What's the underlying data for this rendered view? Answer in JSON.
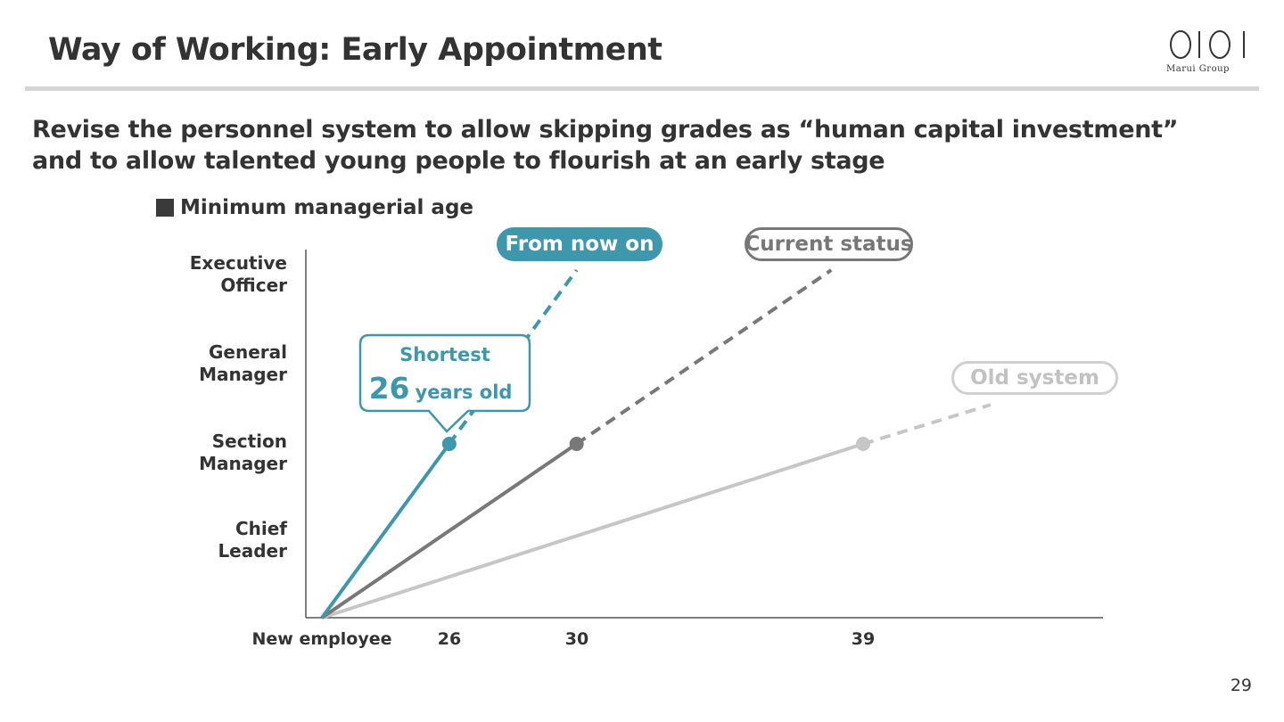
{
  "header": {
    "title": "Way of Working: Early Appointment",
    "logo_text": "Marui Group",
    "subtitle": "Revise the personnel system to allow skipping grades as “human capital investment” and to allow talented young people to flourish at an early stage"
  },
  "legend": {
    "label": "Minimum managerial age"
  },
  "chart_data": {
    "type": "line",
    "y_categories": [
      "Chief Leader",
      "Section Manager",
      "General Manager",
      "Executive Officer"
    ],
    "y_origin_label": "New employee",
    "x_tick_labels": [
      "26",
      "30",
      "39"
    ],
    "series": [
      {
        "name": "From now on",
        "color": "#3d97ad",
        "x": [
          22,
          26
        ],
        "y": [
          0,
          2
        ],
        "marker": {
          "x": 26,
          "y": 2
        },
        "projection": {
          "x": [
            26,
            30
          ],
          "y": [
            2,
            4
          ]
        }
      },
      {
        "name": "Current status",
        "color": "#787878",
        "x": [
          22,
          30
        ],
        "y": [
          0,
          2
        ],
        "marker": {
          "x": 30,
          "y": 2
        },
        "projection": {
          "x": [
            30,
            38
          ],
          "y": [
            2,
            4
          ]
        }
      },
      {
        "name": "Old system",
        "color": "#c6c6c6",
        "x": [
          22,
          39
        ],
        "y": [
          0,
          2
        ],
        "marker": {
          "x": 39,
          "y": 2
        },
        "projection": {
          "x": [
            39,
            43
          ],
          "y": [
            2,
            2.45
          ]
        }
      }
    ],
    "annotation": {
      "line1": "Shortest",
      "number": "26",
      "unit": "years old"
    }
  },
  "footer": {
    "page_number": "29"
  }
}
